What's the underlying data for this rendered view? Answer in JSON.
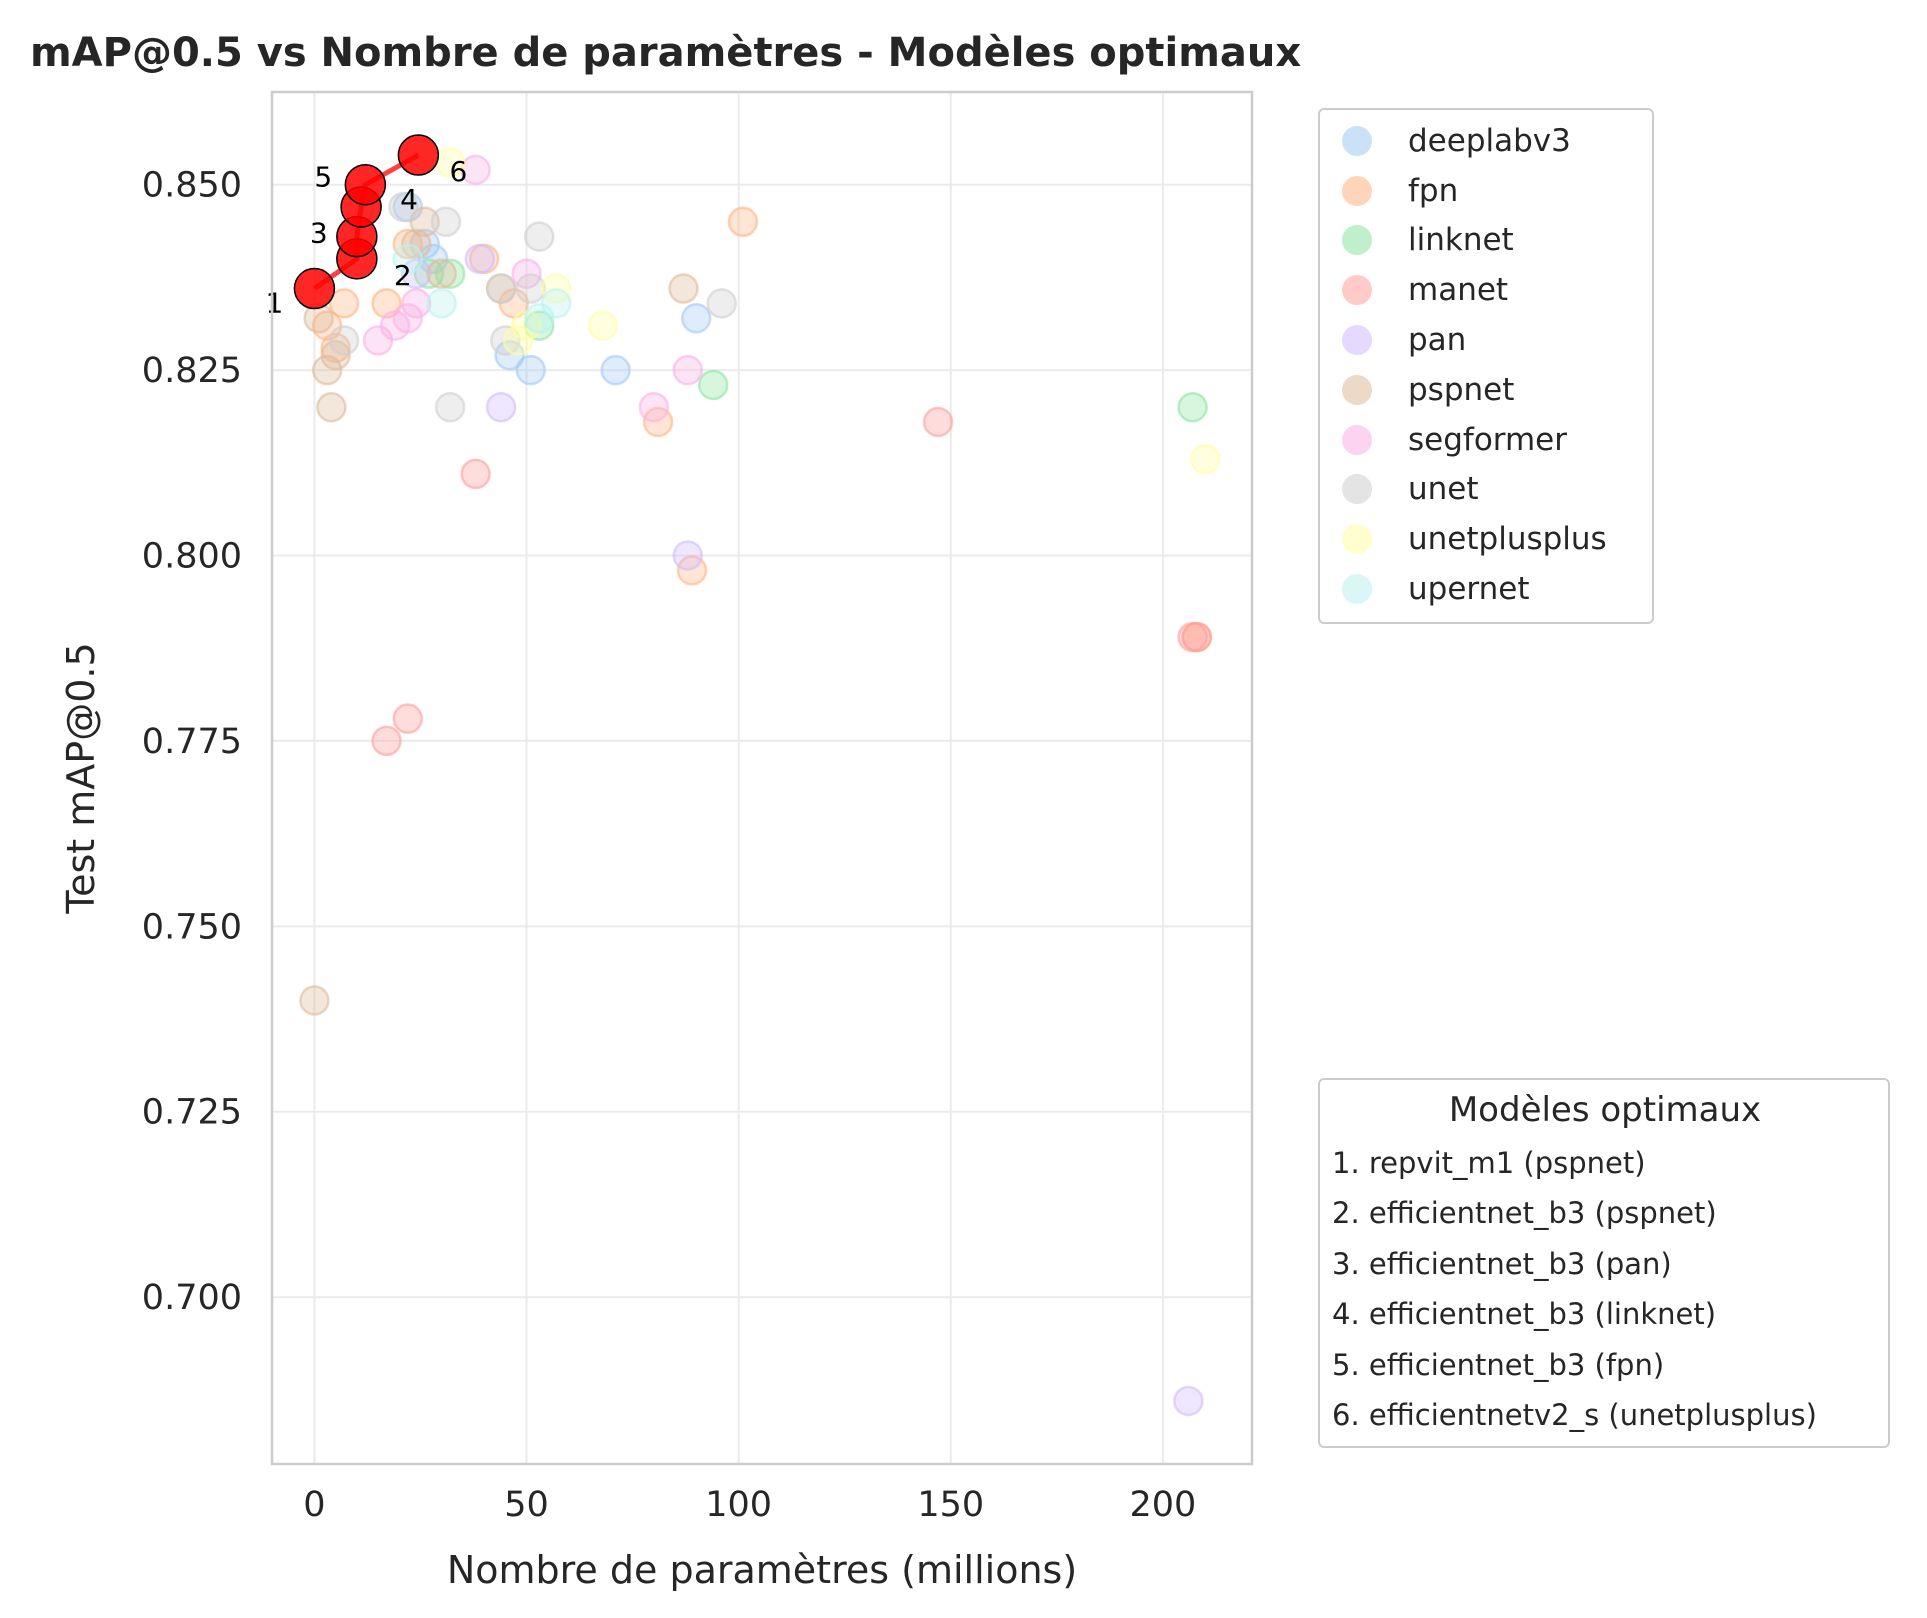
{
  "chart_data": {
    "type": "scatter",
    "title": "mAP@0.5 vs Nombre de paramètres - Modèles optimaux",
    "xlabel": "Nombre de paramètres (millions)",
    "ylabel": "Test mAP@0.5",
    "xlim": [
      -10,
      221
    ],
    "ylim": [
      0.6775,
      0.8625
    ],
    "xticks": [
      0,
      50,
      100,
      150,
      200
    ],
    "yticks": [
      0.7,
      0.725,
      0.75,
      0.775,
      0.8,
      0.825,
      0.85
    ],
    "xtick_labels": [
      "0",
      "50",
      "100",
      "150",
      "200"
    ],
    "ytick_labels": [
      "0.700",
      "0.725",
      "0.750",
      "0.775",
      "0.800",
      "0.825",
      "0.850"
    ],
    "grid": true,
    "series": [
      {
        "name": "deeplabv3",
        "color": "#a1c9f4",
        "points": [
          [
            22,
            0.847
          ],
          [
            28,
            0.84
          ],
          [
            46,
            0.827
          ],
          [
            51,
            0.825
          ],
          [
            71,
            0.825
          ],
          [
            90,
            0.832
          ],
          [
            26,
            0.842
          ]
        ]
      },
      {
        "name": "fpn",
        "color": "#ffb482",
        "points": [
          [
            3,
            0.831
          ],
          [
            7,
            0.834
          ],
          [
            5,
            0.828
          ],
          [
            17,
            0.834
          ],
          [
            22,
            0.842
          ],
          [
            40,
            0.84
          ],
          [
            47,
            0.834
          ],
          [
            81,
            0.818
          ],
          [
            89,
            0.798
          ],
          [
            101,
            0.845
          ],
          [
            208,
            0.789
          ]
        ]
      },
      {
        "name": "linknet",
        "color": "#8de5a1",
        "points": [
          [
            27,
            0.838
          ],
          [
            32,
            0.838
          ],
          [
            53,
            0.831
          ],
          [
            94,
            0.823
          ],
          [
            207,
            0.82
          ]
        ]
      },
      {
        "name": "manet",
        "color": "#ff9f9b",
        "points": [
          [
            17,
            0.775
          ],
          [
            22,
            0.778
          ],
          [
            38,
            0.811
          ],
          [
            147,
            0.818
          ],
          [
            207,
            0.789
          ],
          [
            208,
            0.789
          ]
        ]
      },
      {
        "name": "pan",
        "color": "#d0bbff",
        "points": [
          [
            44,
            0.82
          ],
          [
            88,
            0.8
          ],
          [
            206,
            0.686
          ],
          [
            24,
            0.838
          ],
          [
            39,
            0.84
          ]
        ]
      },
      {
        "name": "pspnet",
        "color": "#debb9b",
        "points": [
          [
            0,
            0.74
          ],
          [
            1,
            0.832
          ],
          [
            3,
            0.825
          ],
          [
            4,
            0.82
          ],
          [
            5,
            0.827
          ],
          [
            24,
            0.842
          ],
          [
            26,
            0.845
          ],
          [
            44,
            0.836
          ],
          [
            87,
            0.836
          ],
          [
            30,
            0.838
          ]
        ]
      },
      {
        "name": "segformer",
        "color": "#fab0e4",
        "points": [
          [
            15,
            0.829
          ],
          [
            19,
            0.831
          ],
          [
            22,
            0.832
          ],
          [
            24,
            0.834
          ],
          [
            38,
            0.852
          ],
          [
            50,
            0.838
          ],
          [
            80,
            0.82
          ],
          [
            88,
            0.825
          ]
        ]
      },
      {
        "name": "unet",
        "color": "#cfcfcf",
        "points": [
          [
            7,
            0.829
          ],
          [
            21,
            0.847
          ],
          [
            31,
            0.845
          ],
          [
            32,
            0.82
          ],
          [
            44,
            0.836
          ],
          [
            45,
            0.829
          ],
          [
            51,
            0.836
          ],
          [
            53,
            0.843
          ],
          [
            96,
            0.834
          ]
        ]
      },
      {
        "name": "unetplusplus",
        "color": "#fffea3",
        "points": [
          [
            32,
            0.853
          ],
          [
            48,
            0.829
          ],
          [
            50,
            0.831
          ],
          [
            57,
            0.836
          ],
          [
            68,
            0.831
          ],
          [
            210,
            0.813
          ]
        ]
      },
      {
        "name": "upernet",
        "color": "#b9f2f0",
        "points": [
          [
            30,
            0.834
          ],
          [
            57,
            0.834
          ],
          [
            53,
            0.832
          ],
          [
            22,
            0.84
          ]
        ]
      }
    ],
    "optimal": {
      "color": "#ff0000",
      "points": [
        [
          0,
          0.836
        ],
        [
          10,
          0.84
        ],
        [
          10,
          0.843
        ],
        [
          11,
          0.847
        ],
        [
          12,
          0.85
        ],
        [
          24.5,
          0.854
        ]
      ],
      "labels": [
        "1",
        "2",
        "3",
        "4",
        "5",
        "6"
      ]
    }
  },
  "legend_optimal": {
    "title": "Modèles optimaux",
    "items": [
      "1. repvit_m1 (pspnet)",
      "2. efficientnet_b3 (pspnet)",
      "3. efficientnet_b3 (pan)",
      "4. efficientnet_b3 (linknet)",
      "5. efficientnet_b3 (fpn)",
      "6. efficientnetv2_s (unetplusplus)"
    ]
  }
}
